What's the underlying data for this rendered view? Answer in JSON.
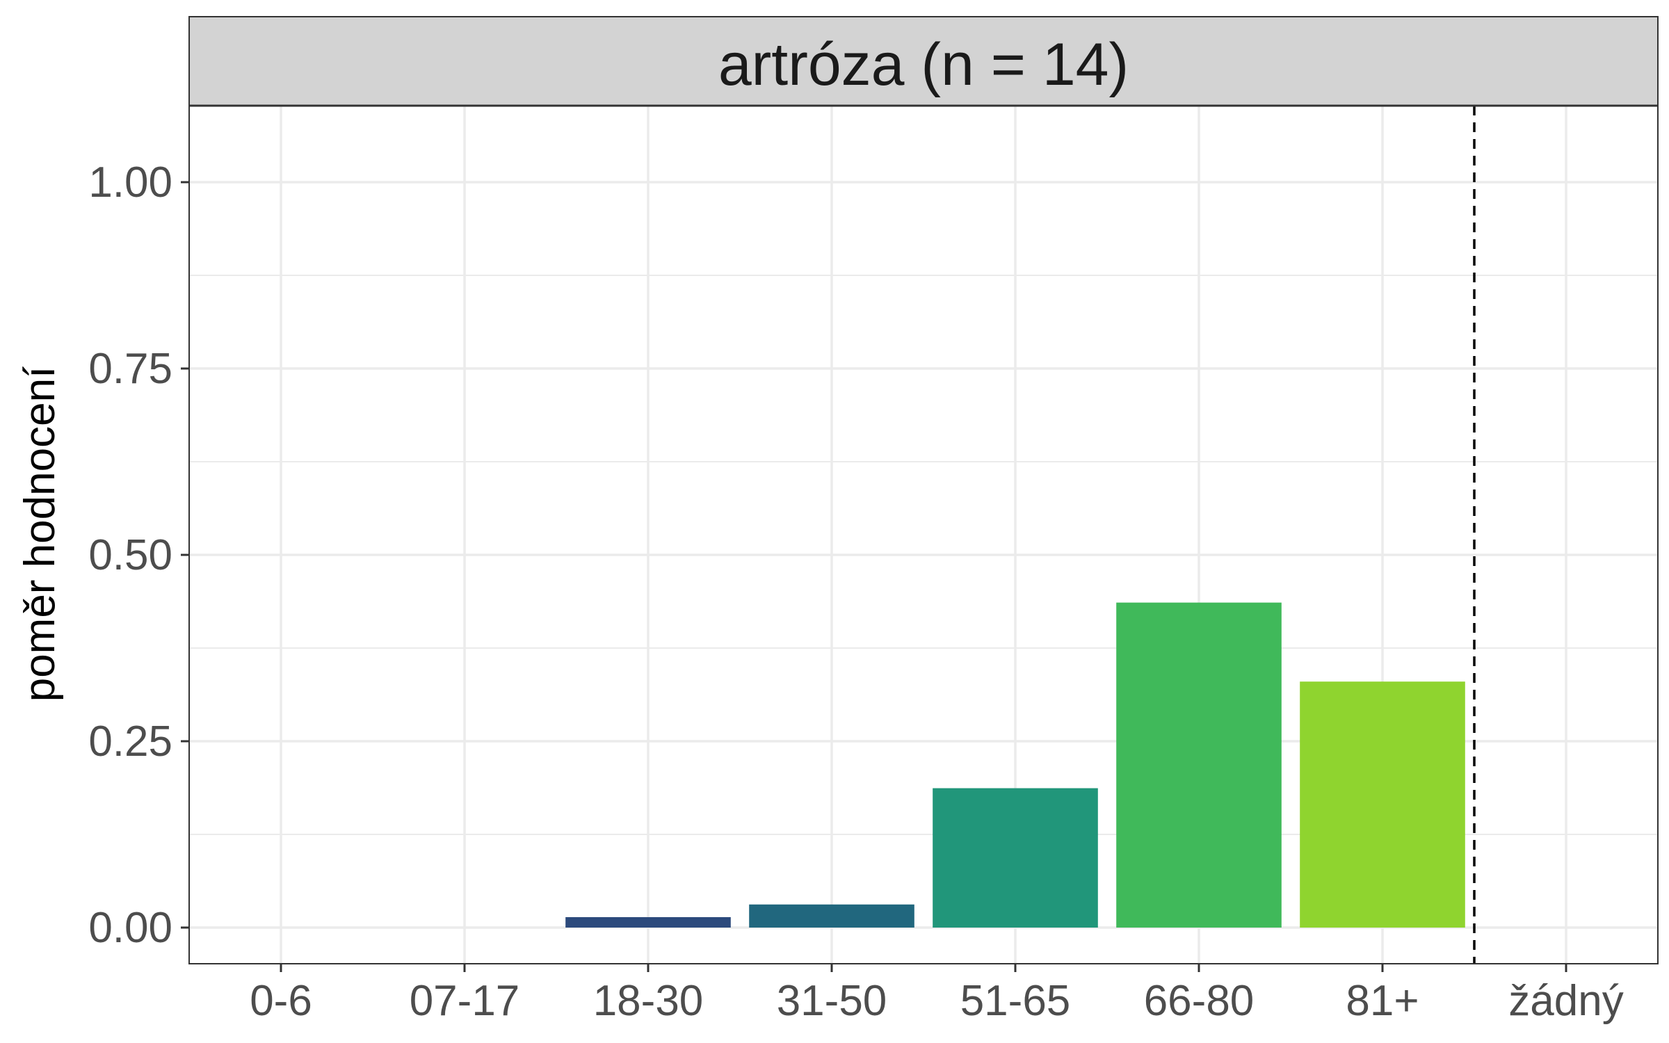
{
  "chart_data": {
    "type": "bar",
    "title": "artróza (n = 14)",
    "xlabel": "",
    "ylabel": "poměr hodnocení",
    "categories": [
      "0-6",
      "07-17",
      "18-30",
      "31-50",
      "51-65",
      "66-80",
      "81+",
      "žádný"
    ],
    "values": [
      0,
      0,
      0.014,
      0.031,
      0.187,
      0.436,
      0.33,
      0
    ],
    "colors": [
      "#482576",
      "#3b528b",
      "#2c4a7c",
      "#21677e",
      "#21967a",
      "#40b95a",
      "#8fd42f",
      "#fde725"
    ],
    "yticks": [
      "0.00",
      "0.25",
      "0.50",
      "0.75",
      "1.00"
    ],
    "ytick_values": [
      0,
      0.25,
      0.5,
      0.75,
      1.0
    ],
    "ylim": [
      -0.05,
      1.1
    ],
    "grid": true,
    "reference_line": {
      "between_categories": [
        "81+",
        "žádný"
      ],
      "style": "dashed",
      "color": "#000000"
    }
  }
}
